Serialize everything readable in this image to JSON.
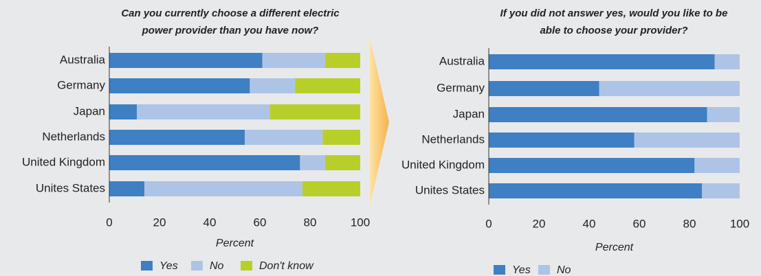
{
  "chart_data": [
    {
      "type": "bar",
      "orientation": "horizontal",
      "stacked": true,
      "title": [
        "Can you currently choose a different electric",
        "power provider than you have now?"
      ],
      "categories": [
        "Australia",
        "Germany",
        "Japan",
        "Netherlands",
        "United Kingdom",
        "Unites States"
      ],
      "series": [
        {
          "name": "Yes",
          "color": "#3f7fc4",
          "values": [
            61,
            56,
            11,
            54,
            76,
            14
          ]
        },
        {
          "name": "No",
          "color": "#aec4e6",
          "values": [
            25,
            18,
            53,
            31,
            10,
            63
          ]
        },
        {
          "name": "Don't know",
          "color": "#b8cf2a",
          "values": [
            14,
            26,
            36,
            15,
            14,
            23
          ]
        }
      ],
      "xlim": [
        0,
        100
      ],
      "xticks": [
        0,
        20,
        40,
        60,
        80,
        100
      ],
      "xlabel": "Percent"
    },
    {
      "type": "bar",
      "orientation": "horizontal",
      "stacked": true,
      "title": [
        "If you did not answer yes, would you like to be",
        "able to choose your provider?"
      ],
      "categories": [
        "Australia",
        "Germany",
        "Japan",
        "Netherlands",
        "United Kingdom",
        "Unites States"
      ],
      "series": [
        {
          "name": "Yes",
          "color": "#3f7fc4",
          "values": [
            90,
            44,
            87,
            58,
            82,
            85
          ]
        },
        {
          "name": "No",
          "color": "#aec4e6",
          "values": [
            10,
            56,
            13,
            42,
            18,
            15
          ]
        }
      ],
      "xlim": [
        0,
        100
      ],
      "xticks": [
        0,
        20,
        40,
        60,
        80,
        100
      ],
      "xlabel": "Percent"
    }
  ]
}
